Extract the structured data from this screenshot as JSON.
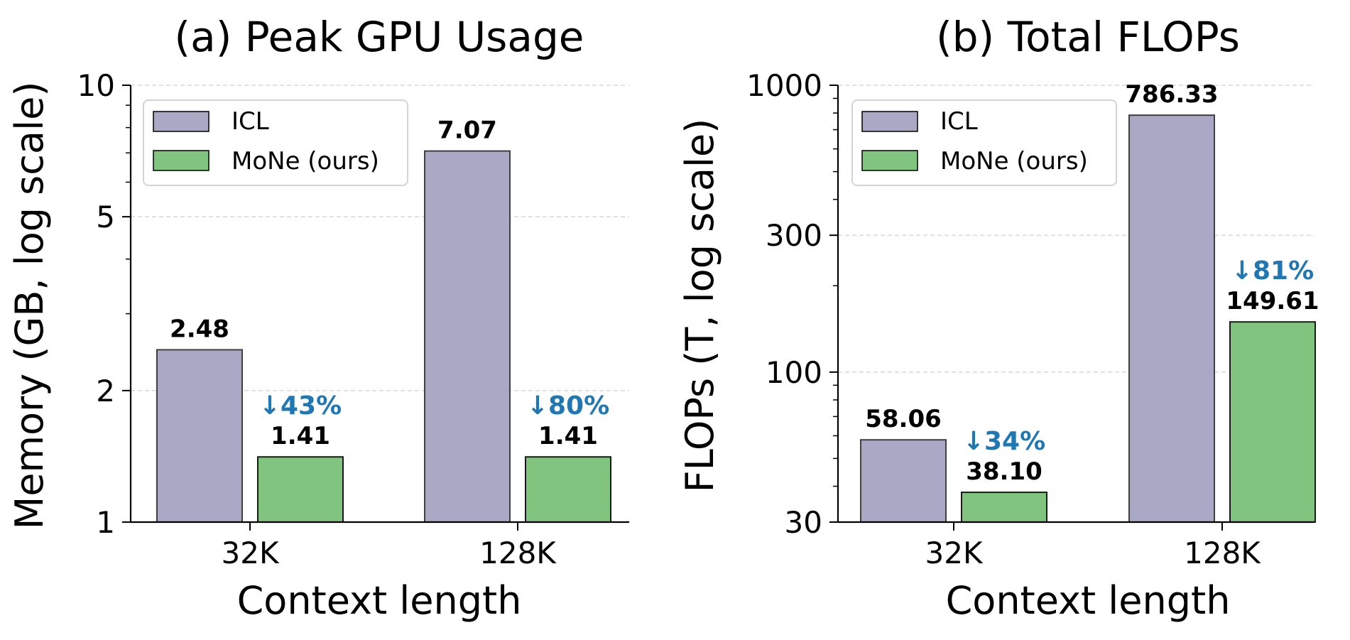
{
  "colors": {
    "icl": "#a9a9c6",
    "mone": "#80c47f",
    "reduction": "#1f77b4",
    "bar_edge": "#000000",
    "grid": "#d0d0d0"
  },
  "chart_data": [
    {
      "type": "bar",
      "title": "(a) Peak GPU Usage",
      "xlabel": "Context length",
      "ylabel": "Memory (GB, log scale)",
      "yscale": "log",
      "ylim": [
        1,
        10
      ],
      "yticks": [
        1,
        2,
        5,
        10
      ],
      "yticklabels": [
        "1",
        "2",
        "5",
        "10"
      ],
      "grid": "y",
      "legend": "top-left",
      "categories": [
        "32K",
        "128K"
      ],
      "series": [
        {
          "name": "ICL",
          "color_key": "icl",
          "values": [
            2.48,
            7.07
          ],
          "labels": [
            "2.48",
            "7.07"
          ]
        },
        {
          "name": "MoNe (ours)",
          "color_key": "mone",
          "values": [
            1.41,
            1.41
          ],
          "labels": [
            "1.41",
            "1.41"
          ],
          "reductions": [
            "↓43%",
            "↓80%"
          ]
        }
      ]
    },
    {
      "type": "bar",
      "title": "(b) Total FLOPs",
      "xlabel": "Context length",
      "ylabel": "FLOPs (T, log scale)",
      "yscale": "log",
      "ylim": [
        30,
        1000
      ],
      "yticks": [
        30,
        100,
        300,
        1000
      ],
      "yticklabels": [
        "30",
        "100",
        "300",
        "1000"
      ],
      "grid": "y",
      "legend": "top-left",
      "categories": [
        "32K",
        "128K"
      ],
      "series": [
        {
          "name": "ICL",
          "color_key": "icl",
          "values": [
            58.06,
            786.33
          ],
          "labels": [
            "58.06",
            "786.33"
          ]
        },
        {
          "name": "MoNe (ours)",
          "color_key": "mone",
          "values": [
            38.1,
            149.61
          ],
          "labels": [
            "38.10",
            "149.61"
          ],
          "reductions": [
            "↓34%",
            "↓81%"
          ]
        }
      ]
    }
  ]
}
